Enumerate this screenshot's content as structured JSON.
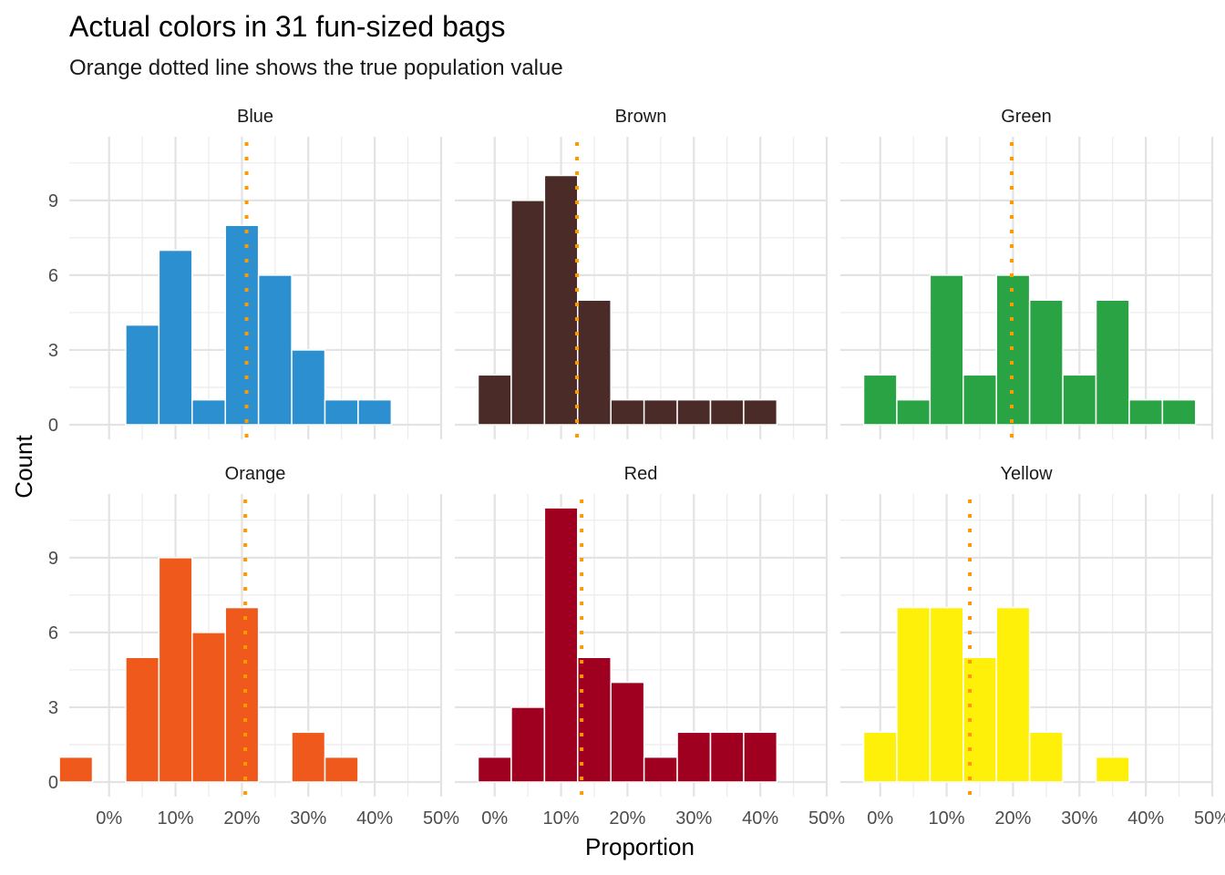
{
  "chart_data": {
    "type": "bar",
    "title": "Actual colors in 31 fun-sized bags",
    "subtitle": "Orange dotted line shows the true population value",
    "xlabel": "Proportion",
    "ylabel": "Count",
    "x_ticks": [
      0,
      10,
      20,
      30,
      40,
      50
    ],
    "x_tick_labels": [
      "0%",
      "10%",
      "20%",
      "30%",
      "40%",
      "50%"
    ],
    "xlim": [
      -6,
      50
    ],
    "y_ticks": [
      0,
      3,
      6,
      9
    ],
    "y_tick_labels": [
      "0",
      "3",
      "6",
      "9"
    ],
    "ylim": [
      0,
      11.5
    ],
    "bin_width": 5,
    "truth_line_color": "#FF9900",
    "grid": true,
    "layout": "2 rows x 3 columns facets",
    "facets": [
      {
        "name": "Blue",
        "color": "#2B8FD0",
        "true_value": 20.7,
        "bins": [
          {
            "x": 5,
            "count": 4
          },
          {
            "x": 10,
            "count": 7
          },
          {
            "x": 15,
            "count": 1
          },
          {
            "x": 20,
            "count": 8
          },
          {
            "x": 25,
            "count": 6
          },
          {
            "x": 30,
            "count": 3
          },
          {
            "x": 35,
            "count": 1
          },
          {
            "x": 40,
            "count": 1
          }
        ]
      },
      {
        "name": "Brown",
        "color": "#4A2B27",
        "true_value": 12.4,
        "bins": [
          {
            "x": 0,
            "count": 2
          },
          {
            "x": 5,
            "count": 9
          },
          {
            "x": 10,
            "count": 10
          },
          {
            "x": 15,
            "count": 5
          },
          {
            "x": 20,
            "count": 1
          },
          {
            "x": 25,
            "count": 1
          },
          {
            "x": 30,
            "count": 1
          },
          {
            "x": 35,
            "count": 1
          },
          {
            "x": 40,
            "count": 1
          }
        ]
      },
      {
        "name": "Green",
        "color": "#2AA344",
        "true_value": 19.8,
        "bins": [
          {
            "x": 0,
            "count": 2
          },
          {
            "x": 5,
            "count": 1
          },
          {
            "x": 10,
            "count": 6
          },
          {
            "x": 15,
            "count": 2
          },
          {
            "x": 20,
            "count": 6
          },
          {
            "x": 25,
            "count": 5
          },
          {
            "x": 30,
            "count": 2
          },
          {
            "x": 35,
            "count": 5
          },
          {
            "x": 40,
            "count": 1
          },
          {
            "x": 45,
            "count": 1
          }
        ]
      },
      {
        "name": "Orange",
        "color": "#EF5A1C",
        "true_value": 20.5,
        "bins": [
          {
            "x": -5,
            "count": 1
          },
          {
            "x": 5,
            "count": 5
          },
          {
            "x": 10,
            "count": 9
          },
          {
            "x": 15,
            "count": 6
          },
          {
            "x": 20,
            "count": 7
          },
          {
            "x": 30,
            "count": 2
          },
          {
            "x": 35,
            "count": 1
          }
        ]
      },
      {
        "name": "Red",
        "color": "#A0001F",
        "true_value": 13.1,
        "bins": [
          {
            "x": 0,
            "count": 1
          },
          {
            "x": 5,
            "count": 3
          },
          {
            "x": 10,
            "count": 11
          },
          {
            "x": 15,
            "count": 5
          },
          {
            "x": 20,
            "count": 4
          },
          {
            "x": 25,
            "count": 1
          },
          {
            "x": 30,
            "count": 2
          },
          {
            "x": 35,
            "count": 2
          },
          {
            "x": 40,
            "count": 2
          }
        ]
      },
      {
        "name": "Yellow",
        "color": "#FFF00A",
        "true_value": 13.5,
        "bins": [
          {
            "x": 0,
            "count": 2
          },
          {
            "x": 5,
            "count": 7
          },
          {
            "x": 10,
            "count": 7
          },
          {
            "x": 15,
            "count": 5
          },
          {
            "x": 20,
            "count": 7
          },
          {
            "x": 25,
            "count": 2
          },
          {
            "x": 35,
            "count": 1
          }
        ]
      }
    ]
  }
}
